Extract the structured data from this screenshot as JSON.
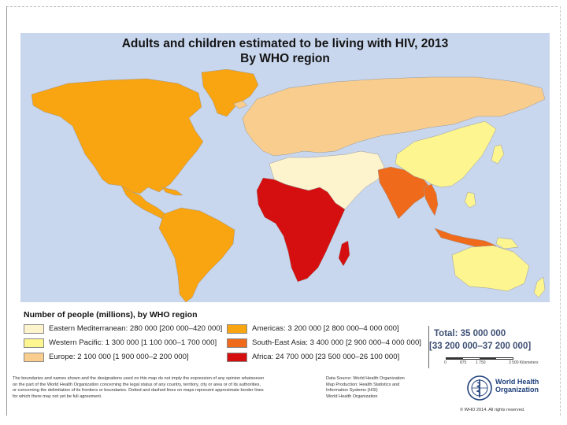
{
  "map": {
    "title": "Adults and children estimated to be living with HIV, 2013",
    "subtitle": "By WHO region",
    "legend_title": "Number of people (millions), by WHO region",
    "regions": [
      {
        "name": "Eastern Mediterranean",
        "label": "Eastern Mediterranean: 280 000 [200 000–420 000]",
        "value": 280000,
        "low": 200000,
        "high": 420000,
        "color": "#fdf3cc"
      },
      {
        "name": "Western Pacific",
        "label": "Western Pacific: 1 300 000 [1 100 000–1 700 000]",
        "value": 1300000,
        "low": 1100000,
        "high": 1700000,
        "color": "#fdf58f"
      },
      {
        "name": "Europe",
        "label": "Europe: 2 100 000 [1 900 000–2 200 000]",
        "value": 2100000,
        "low": 1900000,
        "high": 2200000,
        "color": "#f8cd8e"
      },
      {
        "name": "Americas",
        "label": "Americas: 3 200 000 [2 800 000–4 000 000]",
        "value": 3200000,
        "low": 2800000,
        "high": 4000000,
        "color": "#f9a411"
      },
      {
        "name": "South-East Asia",
        "label": "South-East Asia: 3 400 000 [2 900 000–4 000 000]",
        "value": 3400000,
        "low": 2900000,
        "high": 4000000,
        "color": "#f06a1c"
      },
      {
        "name": "Africa",
        "label": "Africa: 24 700 000 [23 500 000–26 100 000]",
        "value": 24700000,
        "low": 23500000,
        "high": 26100000,
        "color": "#d50f0f"
      }
    ],
    "colors": {
      "ocean": "#c9d7ee",
      "no_data": "#ffffff"
    },
    "total_line1": "Total: 35 000 000",
    "total_line2": "[33 200 000–37 200 000]",
    "scale": {
      "ticks": [
        "0",
        "875",
        "1 750",
        "3 500 Kilometers"
      ]
    },
    "disclaimer": [
      "The boundaries and names shown and the designations used on this map do not imply the expression of any opinion whatsoever",
      "on the part of the World Health Organization concerning the legal status of any country, territory, city or area or of its authorities,",
      "or concerning the delimitation of its frontiers or boundaries. Dotted and dashed lines on maps represent approximate border lines",
      "for which there may not yet be full agreement."
    ],
    "source": [
      "Data Source: World Health Organization",
      "Map Production: Health Statistics and",
      "Information Systems (HSI)",
      "World Health Organization"
    ],
    "who_line1": "World Health",
    "who_line2": "Organization",
    "copyright": "© WHO 2014. All rights reserved."
  }
}
